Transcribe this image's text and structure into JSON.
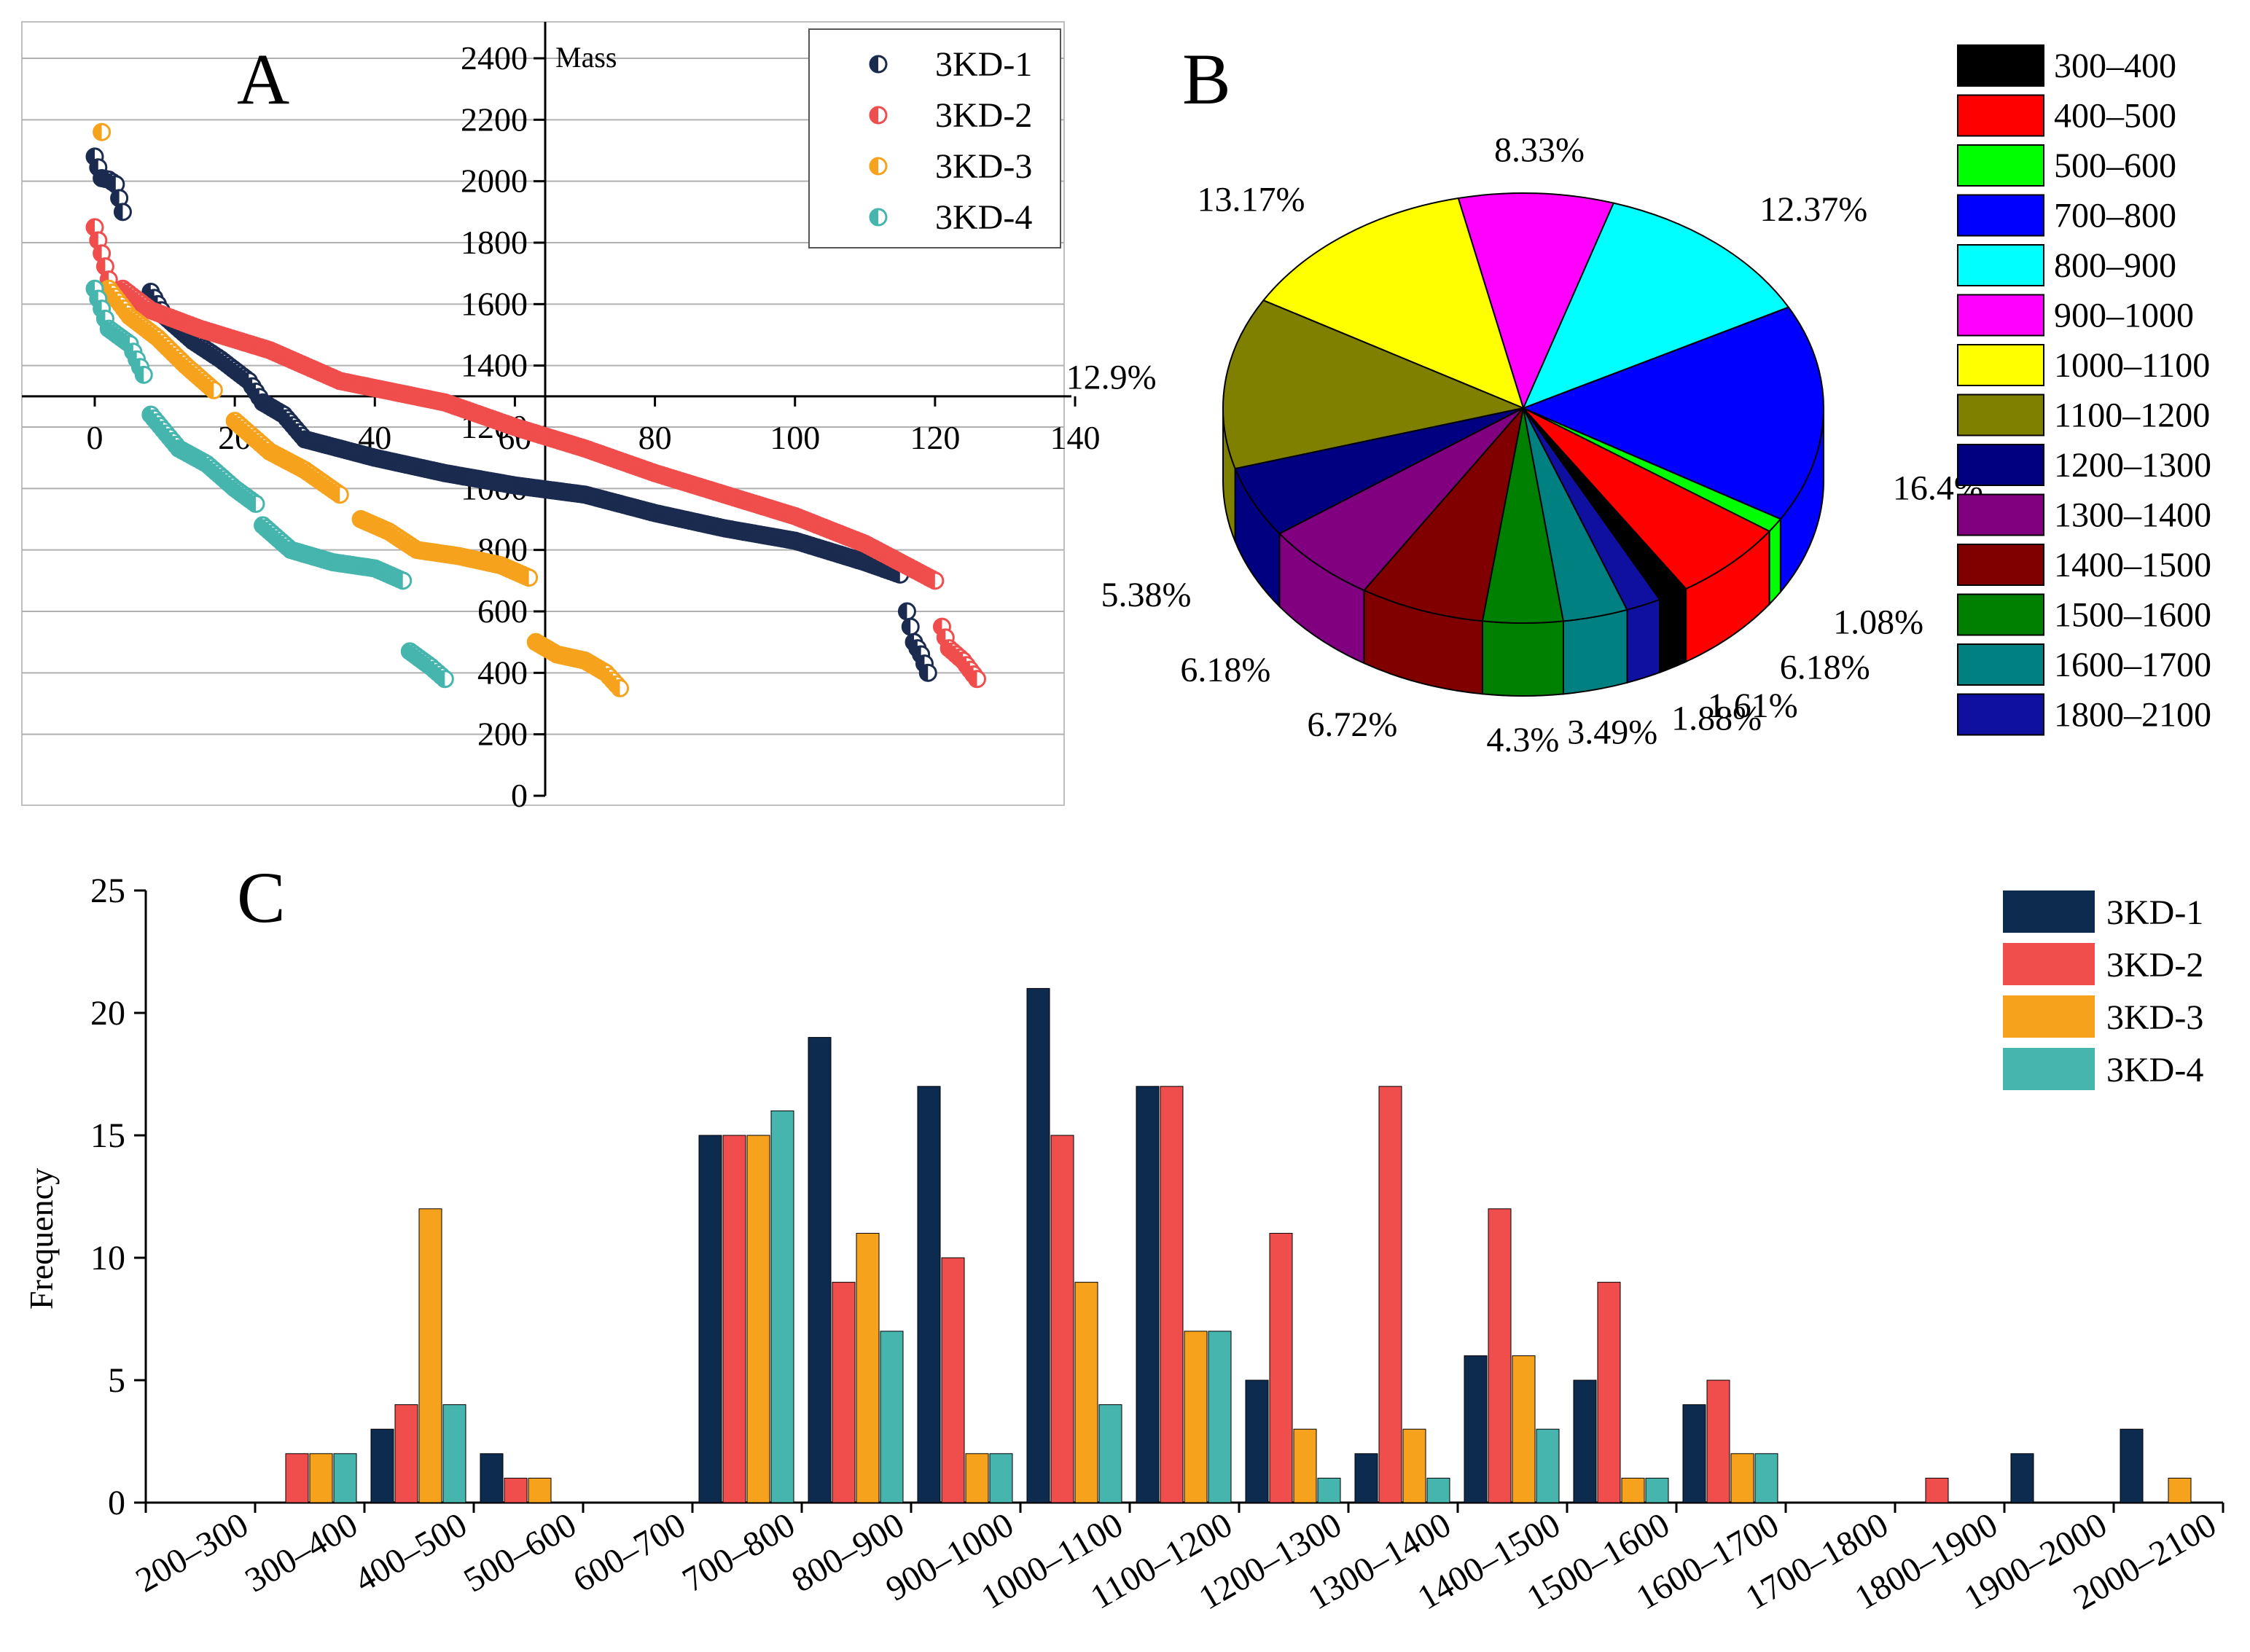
{
  "panels": {
    "a": "A",
    "b": "B",
    "c": "C"
  },
  "chart_data": [
    {
      "id": "A",
      "type": "scatter",
      "ylabel": "Mass",
      "xlim": [
        0,
        140
      ],
      "ylim": [
        0,
        2400
      ],
      "xticks": [
        0,
        20,
        40,
        60,
        80,
        100,
        120,
        140
      ],
      "yticks": [
        0,
        200,
        400,
        600,
        800,
        1000,
        1200,
        1400,
        1600,
        1800,
        2000,
        2200,
        2400
      ],
      "grid": true,
      "legend_position": "top-right",
      "series": [
        {
          "name": "3KD-1",
          "color": "#1a2b4f",
          "segments": [
            {
              "pts": [
                [
                  0,
                  2080
                ],
                [
                  1,
                  2010
                ],
                [
                  2,
                  2005
                ],
                [
                  3,
                  1990
                ],
                [
                  4,
                  1900
                ]
              ]
            },
            {
              "pts": [
                [
                  8,
                  1640
                ],
                [
                  10,
                  1560
                ],
                [
                  14,
                  1480
                ],
                [
                  18,
                  1420
                ],
                [
                  22,
                  1350
                ],
                [
                  24,
                  1280
                ],
                [
                  27,
                  1240
                ],
                [
                  30,
                  1160
                ],
                [
                  40,
                  1100
                ],
                [
                  50,
                  1050
                ],
                [
                  60,
                  1010
                ],
                [
                  70,
                  980
                ],
                [
                  80,
                  920
                ],
                [
                  90,
                  870
                ],
                [
                  100,
                  830
                ],
                [
                  110,
                  760
                ],
                [
                  115,
                  720
                ]
              ]
            },
            {
              "pts": [
                [
                  116,
                  600
                ],
                [
                  117,
                  500
                ],
                [
                  118,
                  460
                ],
                [
                  119,
                  400
                ]
              ]
            }
          ]
        },
        {
          "name": "3KD-2",
          "color": "#f04d4d",
          "segments": [
            {
              "pts": [
                [
                  0,
                  1850
                ],
                [
                  2,
                  1680
                ]
              ]
            },
            {
              "pts": [
                [
                  4,
                  1650
                ],
                [
                  8,
                  1580
                ],
                [
                  15,
                  1520
                ],
                [
                  25,
                  1450
                ],
                [
                  35,
                  1350
                ],
                [
                  50,
                  1280
                ],
                [
                  60,
                  1200
                ],
                [
                  70,
                  1130
                ],
                [
                  80,
                  1050
                ],
                [
                  90,
                  980
                ],
                [
                  100,
                  910
                ],
                [
                  110,
                  820
                ],
                [
                  115,
                  760
                ],
                [
                  120,
                  700
                ]
              ]
            },
            {
              "pts": [
                [
                  121,
                  550
                ],
                [
                  122,
                  480
                ],
                [
                  124,
                  440
                ],
                [
                  126,
                  380
                ]
              ]
            }
          ]
        },
        {
          "name": "3KD-3",
          "color": "#f6a21c",
          "segments": [
            {
              "pts": [
                [
                  1,
                  2160
                ]
              ]
            },
            {
              "pts": [
                [
                  2,
                  1650
                ],
                [
                  5,
                  1560
                ],
                [
                  9,
                  1490
                ],
                [
                  13,
                  1400
                ],
                [
                  17,
                  1320
                ]
              ]
            },
            {
              "pts": [
                [
                  20,
                  1220
                ],
                [
                  25,
                  1120
                ],
                [
                  30,
                  1060
                ],
                [
                  35,
                  980
                ]
              ]
            },
            {
              "pts": [
                [
                  38,
                  900
                ],
                [
                  42,
                  860
                ],
                [
                  46,
                  800
                ],
                [
                  52,
                  780
                ],
                [
                  58,
                  750
                ],
                [
                  62,
                  710
                ]
              ]
            },
            {
              "pts": [
                [
                  63,
                  500
                ],
                [
                  66,
                  460
                ],
                [
                  70,
                  440
                ],
                [
                  73,
                  400
                ],
                [
                  75,
                  350
                ]
              ]
            }
          ]
        },
        {
          "name": "3KD-4",
          "color": "#45b5ad",
          "segments": [
            {
              "pts": [
                [
                  0,
                  1650
                ],
                [
                  2,
                  1520
                ],
                [
                  5,
                  1470
                ],
                [
                  7,
                  1370
                ]
              ]
            },
            {
              "pts": [
                [
                  8,
                  1240
                ],
                [
                  12,
                  1130
                ],
                [
                  16,
                  1080
                ],
                [
                  20,
                  1000
                ],
                [
                  23,
                  950
                ]
              ]
            },
            {
              "pts": [
                [
                  24,
                  880
                ],
                [
                  28,
                  800
                ],
                [
                  34,
                  760
                ],
                [
                  40,
                  740
                ],
                [
                  44,
                  700
                ]
              ]
            },
            {
              "pts": [
                [
                  45,
                  470
                ],
                [
                  48,
                  420
                ],
                [
                  50,
                  380
                ]
              ]
            }
          ]
        }
      ]
    },
    {
      "id": "B",
      "type": "pie",
      "slices": [
        {
          "label": "300–400",
          "value": 1.61,
          "value_label": "1.61%",
          "color": "#000000"
        },
        {
          "label": "400–500",
          "value": 6.18,
          "value_label": "6.18%",
          "color": "#ff0000"
        },
        {
          "label": "500–600",
          "value": 1.08,
          "value_label": "1.08%",
          "color": "#00ff00"
        },
        {
          "label": "700–800",
          "value": 16.4,
          "value_label": "16.4%",
          "color": "#0000ff"
        },
        {
          "label": "800–900",
          "value": 12.37,
          "value_label": "12.37%",
          "color": "#00ffff"
        },
        {
          "label": "900–1000",
          "value": 8.33,
          "value_label": "8.33%",
          "color": "#ff00ff"
        },
        {
          "label": "1000–1100",
          "value": 13.17,
          "value_label": "13.17%",
          "color": "#ffff00"
        },
        {
          "label": "1100–1200",
          "value": 12.9,
          "value_label": "12.9%",
          "color": "#808000"
        },
        {
          "label": "1200–1300",
          "value": 5.38,
          "value_label": "5.38%",
          "color": "#000080"
        },
        {
          "label": "1300–1400",
          "value": 6.18,
          "value_label": "6.18%",
          "color": "#800080"
        },
        {
          "label": "1400–1500",
          "value": 6.72,
          "value_label": "6.72%",
          "color": "#800000"
        },
        {
          "label": "1500–1600",
          "value": 4.3,
          "value_label": "4.3%",
          "color": "#008000"
        },
        {
          "label": "1600–1700",
          "value": 3.49,
          "value_label": "3.49%",
          "color": "#008080"
        },
        {
          "label": "1800–2100",
          "value": 1.88,
          "value_label": "1.88%",
          "color": "#1010a0"
        }
      ],
      "legend_position": "right"
    },
    {
      "id": "C",
      "type": "bar",
      "ylabel": "Frequency",
      "ylim": [
        0,
        25
      ],
      "yticks": [
        0,
        5,
        10,
        15,
        20,
        25
      ],
      "legend_position": "top-right",
      "categories": [
        "200–300",
        "300–400",
        "400–500",
        "500–600",
        "600–700",
        "700–800",
        "800–900",
        "900–1000",
        "1000–1100",
        "1100–1200",
        "1200–1300",
        "1300–1400",
        "1400–1500",
        "1500–1600",
        "1600–1700",
        "1700–1800",
        "1800–1900",
        "1900–2000",
        "2000–2100"
      ],
      "series": [
        {
          "name": "3KD-1",
          "color": "#0d2a4f",
          "values": [
            0,
            0,
            3,
            2,
            0,
            15,
            19,
            17,
            21,
            17,
            5,
            2,
            6,
            5,
            4,
            0,
            0,
            2,
            3
          ]
        },
        {
          "name": "3KD-2",
          "color": "#f04d4d",
          "values": [
            0,
            2,
            4,
            1,
            0,
            15,
            9,
            10,
            15,
            17,
            11,
            17,
            12,
            9,
            5,
            0,
            1,
            0,
            0
          ]
        },
        {
          "name": "3KD-3",
          "color": "#f6a21c",
          "values": [
            0,
            2,
            12,
            1,
            0,
            15,
            11,
            2,
            9,
            7,
            3,
            3,
            6,
            1,
            2,
            0,
            0,
            0,
            1
          ]
        },
        {
          "name": "3KD-4",
          "color": "#45b5ad",
          "values": [
            0,
            2,
            4,
            0,
            0,
            16,
            7,
            2,
            4,
            7,
            1,
            1,
            3,
            1,
            2,
            0,
            0,
            0,
            0
          ]
        }
      ]
    }
  ]
}
